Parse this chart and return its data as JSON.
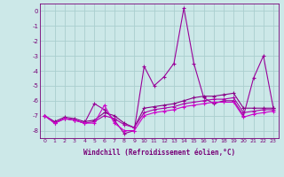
{
  "xlabel": "Windchill (Refroidissement éolien,°C)",
  "x": [
    0,
    1,
    2,
    3,
    4,
    5,
    6,
    7,
    8,
    9,
    10,
    11,
    12,
    13,
    14,
    15,
    16,
    17,
    18,
    19,
    20,
    21,
    22,
    23
  ],
  "line1": [
    -7.0,
    -7.5,
    -7.2,
    -7.3,
    -7.5,
    -6.2,
    -6.6,
    -7.3,
    -8.2,
    -8.0,
    -3.7,
    -5.0,
    -4.4,
    -3.5,
    0.2,
    -3.5,
    -5.8,
    -6.2,
    -6.0,
    -6.0,
    -7.0,
    -4.5,
    -3.0,
    -6.5
  ],
  "line2": [
    -7.0,
    -7.4,
    -7.1,
    -7.2,
    -7.4,
    -7.3,
    -6.8,
    -7.0,
    -7.5,
    -7.8,
    -6.5,
    -6.4,
    -6.3,
    -6.2,
    -6.0,
    -5.8,
    -5.7,
    -5.7,
    -5.6,
    -5.5,
    -6.5,
    -6.5,
    -6.5,
    -6.5
  ],
  "line3": [
    -7.0,
    -7.5,
    -7.2,
    -7.3,
    -7.5,
    -7.4,
    -7.0,
    -7.2,
    -7.6,
    -7.8,
    -6.8,
    -6.6,
    -6.5,
    -6.4,
    -6.2,
    -6.1,
    -6.0,
    -5.9,
    -5.9,
    -5.8,
    -6.8,
    -6.7,
    -6.6,
    -6.6
  ],
  "line4": [
    -7.0,
    -7.5,
    -7.2,
    -7.3,
    -7.5,
    -7.5,
    -6.3,
    -7.5,
    -8.0,
    -8.0,
    -7.0,
    -6.8,
    -6.7,
    -6.6,
    -6.4,
    -6.3,
    -6.2,
    -6.1,
    -6.1,
    -6.1,
    -7.1,
    -6.9,
    -6.8,
    -6.7
  ],
  "line_colors": [
    "#990099",
    "#880088",
    "#aa00aa",
    "#cc00cc"
  ],
  "bg_color": "#cce8e8",
  "grid_color": "#aacece",
  "label_color": "#770077",
  "ylim": [
    -8.5,
    0.5
  ],
  "yticks": [
    0,
    -1,
    -2,
    -3,
    -4,
    -5,
    -6,
    -7,
    -8
  ],
  "xlim": [
    -0.5,
    23.5
  ]
}
